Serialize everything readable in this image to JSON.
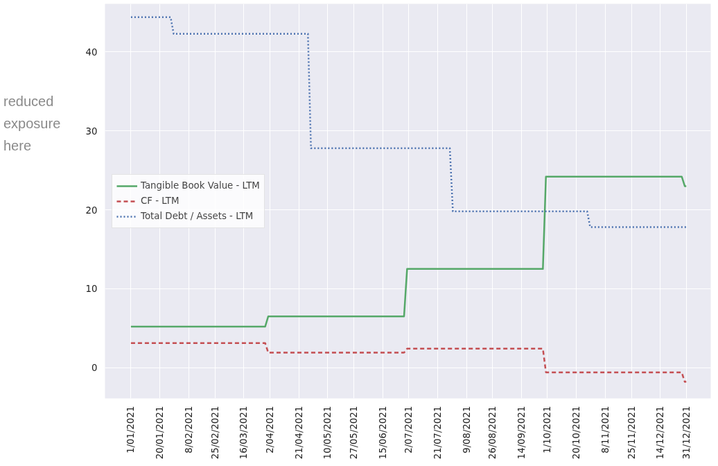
{
  "chart_data": {
    "type": "line",
    "annotations": [
      "reduced exposure here"
    ],
    "xlim": [
      "2020-12-15",
      "2022-01-16"
    ],
    "ylim": [
      -3.9,
      46.1
    ],
    "xticks": [
      {
        "value": "2021-01-01",
        "label": "1/01/2021"
      },
      {
        "value": "2021-01-20",
        "label": "20/01/2021"
      },
      {
        "value": "2021-02-08",
        "label": "8/02/2021"
      },
      {
        "value": "2021-02-25",
        "label": "25/02/2021"
      },
      {
        "value": "2021-03-16",
        "label": "16/03/2021"
      },
      {
        "value": "2021-04-02",
        "label": "2/04/2021"
      },
      {
        "value": "2021-04-21",
        "label": "21/04/2021"
      },
      {
        "value": "2021-05-10",
        "label": "10/05/2021"
      },
      {
        "value": "2021-05-27",
        "label": "27/05/2021"
      },
      {
        "value": "2021-06-15",
        "label": "15/06/2021"
      },
      {
        "value": "2021-07-02",
        "label": "2/07/2021"
      },
      {
        "value": "2021-07-21",
        "label": "21/07/2021"
      },
      {
        "value": "2021-08-09",
        "label": "9/08/2021"
      },
      {
        "value": "2021-08-26",
        "label": "26/08/2021"
      },
      {
        "value": "2021-09-14",
        "label": "14/09/2021"
      },
      {
        "value": "2021-10-01",
        "label": "1/10/2021"
      },
      {
        "value": "2021-10-20",
        "label": "20/10/2021"
      },
      {
        "value": "2021-11-08",
        "label": "8/11/2021"
      },
      {
        "value": "2021-11-25",
        "label": "25/11/2021"
      },
      {
        "value": "2021-12-14",
        "label": "14/12/2021"
      },
      {
        "value": "2021-12-31",
        "label": "31/12/2021"
      }
    ],
    "yticks": [
      0,
      10,
      20,
      30,
      40
    ],
    "grid": true,
    "legend": "left",
    "series": [
      {
        "name": "Tangible Book Value - LTM",
        "color": "#55a868",
        "line_style": "solid",
        "x": [
          "2021-01-01",
          "2021-03-30",
          "2021-04-01",
          "2021-06-29",
          "2021-07-01",
          "2021-09-28",
          "2021-09-30",
          "2021-12-28",
          "2021-12-30",
          "2021-12-31"
        ],
        "values": [
          5.2,
          5.2,
          6.5,
          6.5,
          12.5,
          12.5,
          24.2,
          24.2,
          23.0,
          23.0
        ]
      },
      {
        "name": "CF - LTM",
        "color": "#c44e52",
        "line_style": "dashed",
        "x": [
          "2021-01-01",
          "2021-03-30",
          "2021-04-01",
          "2021-06-29",
          "2021-07-01",
          "2021-09-28",
          "2021-09-30",
          "2021-12-28",
          "2021-12-30",
          "2021-12-31"
        ],
        "values": [
          3.1,
          3.1,
          1.9,
          1.9,
          2.4,
          2.4,
          -0.6,
          -0.6,
          -1.8,
          -1.8
        ]
      },
      {
        "name": "Total Debt / Assets - LTM",
        "color": "#4c72b0",
        "line_style": "dotted",
        "x": [
          "2021-01-01",
          "2021-01-27",
          "2021-01-29",
          "2021-04-27",
          "2021-04-29",
          "2021-07-29",
          "2021-07-31",
          "2021-10-27",
          "2021-10-29",
          "2021-12-31"
        ],
        "values": [
          44.4,
          44.4,
          42.3,
          42.3,
          27.8,
          27.8,
          19.8,
          19.8,
          17.8,
          17.8
        ]
      }
    ]
  }
}
